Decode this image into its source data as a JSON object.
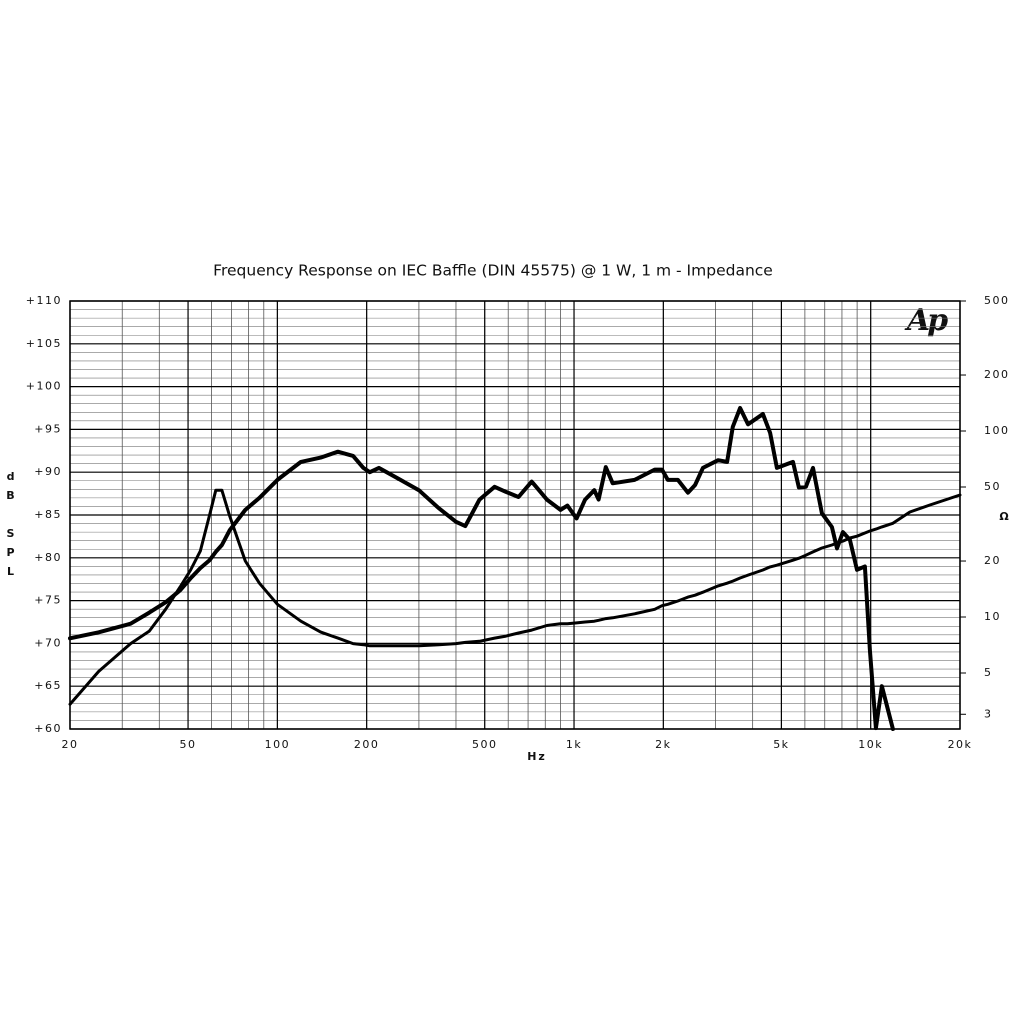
{
  "chart_data": {
    "type": "line",
    "title": "Frequency Response on IEC Baffle (DIN 45575) @ 1 W, 1 m - Impedance",
    "xlabel": "Hz",
    "ylabel": "dB SPL",
    "y2label": "Ω",
    "logo": "Ap",
    "xscale": "log",
    "y2scale": "log",
    "grid": true,
    "xlim": [
      20,
      20000
    ],
    "ylim": [
      60,
      110
    ],
    "y2lim": [
      2.5,
      500
    ],
    "xticks": [
      20,
      50,
      100,
      200,
      500,
      {
        "value": 1000,
        "label": "1k"
      },
      {
        "value": 2000,
        "label": "2k"
      },
      {
        "value": 5000,
        "label": "5k"
      },
      {
        "value": 10000,
        "label": "10k"
      },
      {
        "value": 20000,
        "label": "20k"
      }
    ],
    "yticks": [
      {
        "value": 60,
        "label": "+60"
      },
      {
        "value": 65,
        "label": "+65"
      },
      {
        "value": 70,
        "label": "+70"
      },
      {
        "value": 75,
        "label": "+75"
      },
      {
        "value": 80,
        "label": "+80"
      },
      {
        "value": 85,
        "label": "+85"
      },
      {
        "value": 90,
        "label": "+90"
      },
      {
        "value": 95,
        "label": "+95"
      },
      {
        "value": 100,
        "label": "+100"
      },
      {
        "value": 105,
        "label": "+105"
      },
      {
        "value": 110,
        "label": "+110"
      }
    ],
    "y2ticks": [
      3,
      5,
      10,
      20,
      50,
      100,
      200,
      500
    ],
    "x": [
      20,
      25,
      32,
      37,
      42,
      47,
      51,
      55,
      59,
      62,
      65,
      69,
      78,
      87,
      100,
      120,
      140,
      160,
      180,
      195,
      205,
      220,
      260,
      300,
      350,
      400,
      430,
      480,
      540,
      590,
      650,
      720,
      810,
      900,
      950,
      1020,
      1090,
      1170,
      1210,
      1280,
      1350,
      1600,
      1870,
      1980,
      2070,
      2240,
      2420,
      2560,
      2720,
      3060,
      3280,
      3430,
      3630,
      3860,
      4330,
      4580,
      4830,
      5470,
      5730,
      6050,
      6390,
      6850,
      7400,
      7700,
      8060,
      8510,
      8990,
      9560,
      9940,
      10410,
      10910,
      11880,
      13560,
      15830,
      20000
    ],
    "series": [
      {
        "color": "#000000",
        "axis": "y",
        "values": [
          70.6,
          71.3,
          72.3,
          73.6,
          74.8,
          76.2,
          77.6,
          78.8,
          79.7,
          80.7,
          81.5,
          83.2,
          85.6,
          87.0,
          89.1,
          91.2,
          91.7,
          92.4,
          91.9,
          90.5,
          90.0,
          90.5,
          89.1,
          87.9,
          85.8,
          84.2,
          83.7,
          86.8,
          88.3,
          87.7,
          87.1,
          88.9,
          86.8,
          85.6,
          86.1,
          84.6,
          86.8,
          87.9,
          86.8,
          90.6,
          88.7,
          89.1,
          90.3,
          90.3,
          89.1,
          89.1,
          87.6,
          88.5,
          90.5,
          91.4,
          91.2,
          95.3,
          97.5,
          95.6,
          96.8,
          94.6,
          90.5,
          91.2,
          88.2,
          88.3,
          90.5,
          85.2,
          83.6,
          81.1,
          83.0,
          82.1,
          78.6,
          79.0,
          69.2,
          60.1,
          65.0,
          60.0,
          null,
          null,
          null
        ]
      },
      {
        "color": "#000000",
        "axis": "y2",
        "values": [
          3.4,
          5.1,
          7.2,
          8.4,
          11,
          14.5,
          17.9,
          22.6,
          35,
          48,
          48,
          35,
          20,
          15.2,
          11.7,
          9.5,
          8.3,
          7.7,
          7.2,
          7.1,
          7.0,
          7.0,
          7.0,
          7.0,
          7.1,
          7.2,
          7.3,
          7.4,
          7.7,
          7.9,
          8.2,
          8.5,
          9.0,
          9.2,
          9.2,
          9.3,
          9.4,
          9.5,
          9.6,
          9.8,
          9.9,
          10.4,
          11.0,
          11.5,
          11.7,
          12.2,
          12.8,
          13.1,
          13.6,
          14.7,
          15.2,
          15.6,
          16.2,
          16.8,
          17.9,
          18.6,
          19.0,
          20.2,
          20.7,
          21.5,
          22.4,
          23.5,
          24.4,
          25.0,
          25.6,
          26.6,
          27.2,
          28.3,
          29.0,
          29.7,
          30.5,
          31.9,
          36.7,
          40,
          45.3
        ]
      }
    ]
  }
}
